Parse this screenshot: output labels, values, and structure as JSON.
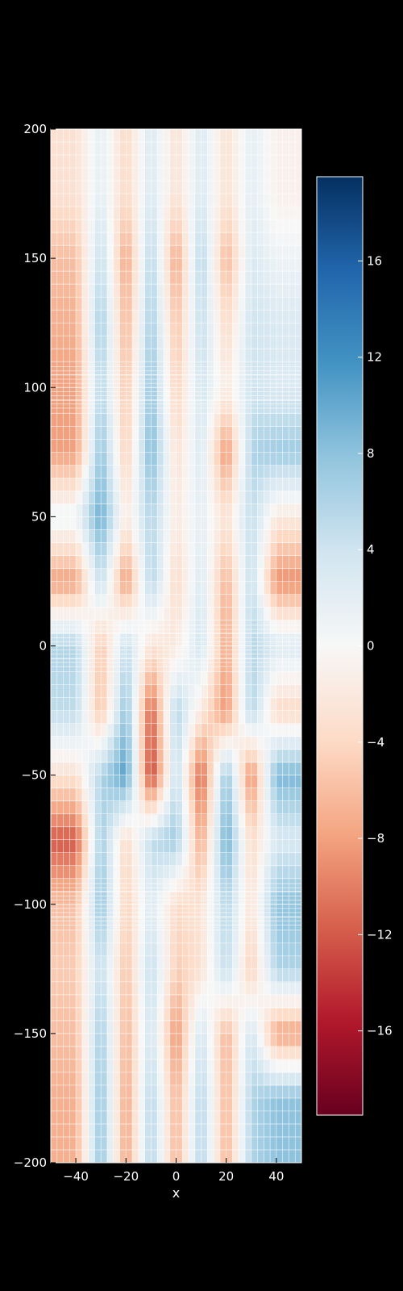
{
  "chart_data": {
    "type": "heatmap",
    "title": "",
    "xlabel": "x",
    "ylabel": "",
    "colorbar_label": "",
    "xlim": [
      -50,
      50
    ],
    "ylim": [
      -200,
      200
    ],
    "x_ticks": [
      -40,
      -20,
      0,
      20,
      40
    ],
    "x_tick_labels": [
      "−40",
      "−20",
      "0",
      "20",
      "40"
    ],
    "y_ticks": [
      -200,
      -150,
      -100,
      -50,
      0,
      50,
      100,
      150,
      200
    ],
    "y_tick_labels": [
      "−200",
      "−150",
      "−100",
      "−50",
      "0",
      "50",
      "100",
      "150",
      "200"
    ],
    "colorbar_range": [
      -19.5,
      19.5
    ],
    "colorbar_ticks": [
      -16,
      -12,
      -8,
      -4,
      0,
      4,
      8,
      12,
      16
    ],
    "colorbar_tick_labels": [
      "−16",
      "−12",
      "−8",
      "−4",
      "0",
      "4",
      "8",
      "12",
      "16"
    ],
    "colormap": "RdBu",
    "colormap_stops": [
      "#67001f",
      "#b2182b",
      "#d6604d",
      "#f4a582",
      "#fddbc7",
      "#f7f7f7",
      "#d1e5f0",
      "#92c5de",
      "#4393c3",
      "#2166ac",
      "#053061"
    ],
    "grid": true,
    "background": "#000000",
    "grid_color": "#ffffff",
    "field_samples": {
      "x": [
        -40,
        -30,
        -20,
        -10,
        0,
        10,
        20,
        30,
        40
      ],
      "y": [
        175,
        150,
        125,
        100,
        75,
        50,
        25,
        0,
        -25,
        -50,
        -75,
        -100,
        -125,
        -150,
        -175
      ],
      "values": [
        [
          -3,
          2,
          -4,
          3,
          -3,
          3,
          -3,
          2,
          -1
        ],
        [
          -6,
          5,
          -8,
          6,
          -8,
          6,
          -7,
          3,
          1
        ],
        [
          -7,
          7,
          -7,
          7,
          -6,
          5,
          -4,
          4,
          3
        ],
        [
          -8,
          6,
          -6,
          8,
          -5,
          4,
          -2,
          4,
          3
        ],
        [
          -8,
          8,
          -5,
          9,
          -3,
          3,
          -9,
          6,
          7
        ],
        [
          1,
          10,
          -2,
          6,
          -2,
          2,
          -3,
          5,
          -2
        ],
        [
          -8,
          5,
          -9,
          6,
          -4,
          3,
          -7,
          5,
          -9
        ],
        [
          6,
          -6,
          5,
          -3,
          -2,
          4,
          -8,
          6,
          3
        ],
        [
          5,
          -6,
          8,
          -12,
          6,
          -2,
          -9,
          6,
          -4
        ],
        [
          -3,
          6,
          11,
          -14,
          5,
          -12,
          8,
          -10,
          9
        ],
        [
          -12,
          7,
          -4,
          5,
          7,
          -8,
          10,
          -4,
          3
        ],
        [
          -6,
          8,
          -5,
          3,
          -4,
          -3,
          6,
          -3,
          8
        ],
        [
          -5,
          5,
          -6,
          5,
          -5,
          -3,
          5,
          -5,
          6
        ],
        [
          -6,
          7,
          -7,
          4,
          -9,
          4,
          -7,
          4,
          -8
        ],
        [
          -7,
          8,
          -8,
          6,
          -7,
          6,
          -7,
          6,
          8
        ]
      ]
    }
  }
}
